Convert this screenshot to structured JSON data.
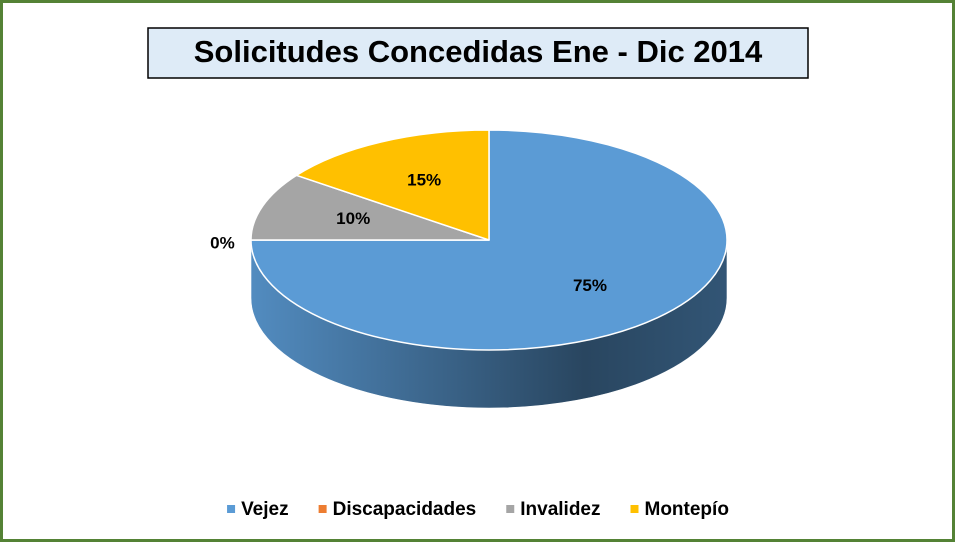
{
  "chart_data": {
    "type": "pie3d",
    "title": "Solicitudes Concedidas Ene - Dic 2014",
    "categories": [
      "Vejez",
      "Discapacidades",
      "Invalidez",
      "Montepío"
    ],
    "values": [
      75,
      0,
      10,
      15
    ],
    "value_labels": [
      "75%",
      "0%",
      "10%",
      "15%"
    ],
    "colors": [
      "#5b9bd5",
      "#ed7d31",
      "#a5a5a5",
      "#ffc000"
    ],
    "legend": "bottom"
  }
}
